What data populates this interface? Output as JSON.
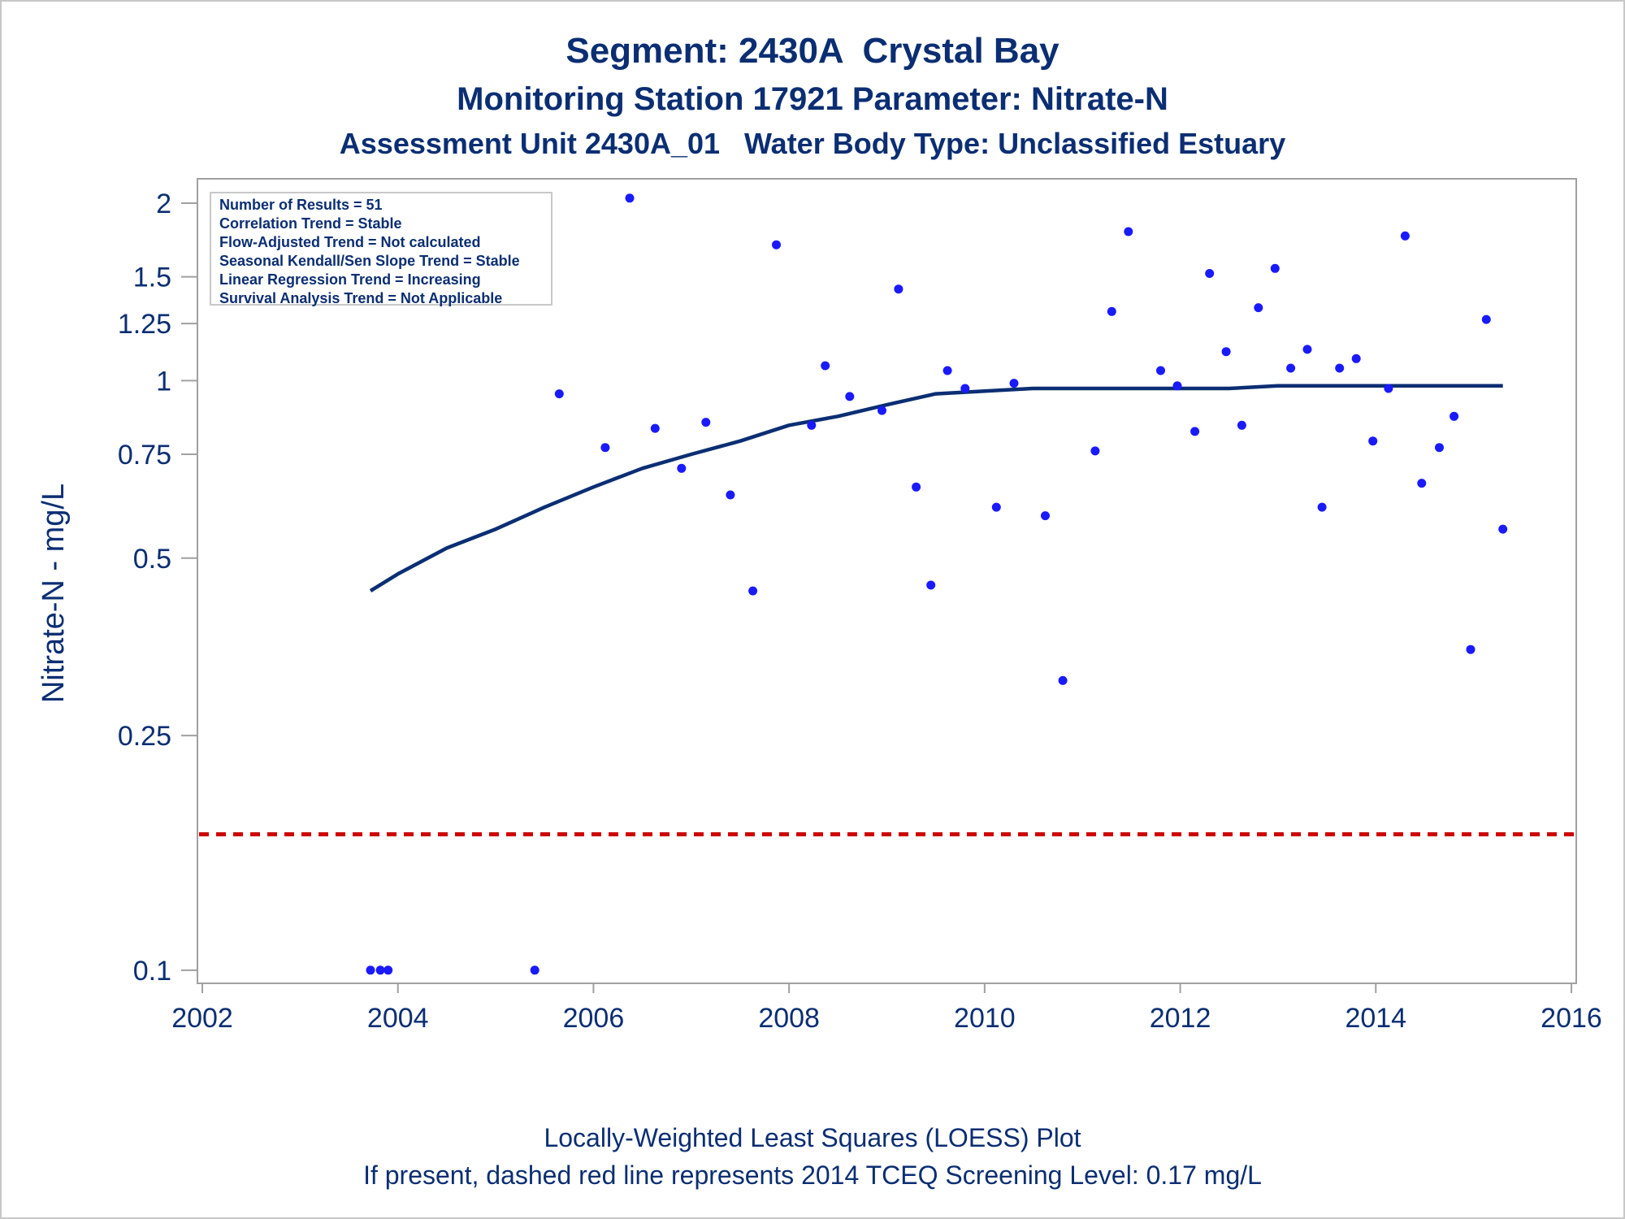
{
  "titles": {
    "line1": "Segment: 2430A  Crystal Bay",
    "line2": "Monitoring Station 17921 Parameter: Nitrate-N",
    "line3": "Assessment Unit 2430A_01   Water Body Type: Unclassified Estuary"
  },
  "footnotes": {
    "line1": "Locally-Weighted Least Squares (LOESS) Plot",
    "line2": "If present, dashed red line represents 2014 TCEQ Screening Level: 0.17 mg/L"
  },
  "stats": [
    "Number of Results = 51",
    "Correlation Trend = Stable",
    "Flow-Adjusted Trend = Not calculated",
    "Seasonal Kendall/Sen Slope Trend = Stable",
    "Linear Regression Trend = Increasing",
    "Survival Analysis Trend = Not Applicable"
  ],
  "colors": {
    "text": "#0b2e73",
    "points": "#1a1aff",
    "loess": "#0b2e73",
    "screening_line": "#cc0000",
    "axis": "#a0a0a0"
  },
  "chart_data": {
    "type": "scatter",
    "xlabel": "",
    "ylabel": "Nitrate-N - mg/L",
    "xlim": [
      2001.95,
      2016.05
    ],
    "ylim": [
      0.095,
      2.2
    ],
    "y_scale": "log",
    "x_ticks": [
      2002,
      2004,
      2006,
      2008,
      2010,
      2012,
      2014,
      2016
    ],
    "x_tick_labels": [
      "2002",
      "2004",
      "2006",
      "2008",
      "2010",
      "2012",
      "2014",
      "2016"
    ],
    "y_ticks": [
      0.1,
      0.25,
      0.5,
      0.75,
      1,
      1.25,
      1.5,
      2
    ],
    "y_tick_labels": [
      "0.1",
      "0.25",
      "0.5",
      "0.75",
      "1",
      "1.25",
      "1.5",
      "2"
    ],
    "grid": false,
    "legend": "none",
    "series": [
      {
        "type": "scatter",
        "points": [
          [
            2003.72,
            0.1
          ],
          [
            2003.82,
            0.1
          ],
          [
            2003.9,
            0.1
          ],
          [
            2005.4,
            0.1
          ],
          [
            2005.65,
            0.95
          ],
          [
            2006.12,
            0.77
          ],
          [
            2006.37,
            2.04
          ],
          [
            2006.63,
            0.83
          ],
          [
            2006.9,
            0.71
          ],
          [
            2007.15,
            0.85
          ],
          [
            2007.4,
            0.64
          ],
          [
            2007.63,
            0.44
          ],
          [
            2007.87,
            1.7
          ],
          [
            2008.23,
            0.84
          ],
          [
            2008.37,
            1.06
          ],
          [
            2008.62,
            0.94
          ],
          [
            2008.95,
            0.89
          ],
          [
            2009.12,
            1.43
          ],
          [
            2009.3,
            0.66
          ],
          [
            2009.45,
            0.45
          ],
          [
            2009.62,
            1.04
          ],
          [
            2009.8,
            0.97
          ],
          [
            2010.12,
            0.61
          ],
          [
            2010.3,
            0.99
          ],
          [
            2010.62,
            0.59
          ],
          [
            2010.8,
            0.31
          ],
          [
            2011.13,
            0.76
          ],
          [
            2011.3,
            1.31
          ],
          [
            2011.47,
            1.79
          ],
          [
            2011.8,
            1.04
          ],
          [
            2011.97,
            0.98
          ],
          [
            2012.15,
            0.82
          ],
          [
            2012.3,
            1.52
          ],
          [
            2012.47,
            1.12
          ],
          [
            2012.63,
            0.84
          ],
          [
            2012.8,
            1.33
          ],
          [
            2012.97,
            1.55
          ],
          [
            2013.13,
            1.05
          ],
          [
            2013.3,
            1.13
          ],
          [
            2013.45,
            0.61
          ],
          [
            2013.63,
            1.05
          ],
          [
            2013.8,
            1.09
          ],
          [
            2013.97,
            0.79
          ],
          [
            2014.13,
            0.97
          ],
          [
            2014.3,
            1.76
          ],
          [
            2014.47,
            0.67
          ],
          [
            2014.65,
            0.77
          ],
          [
            2014.8,
            0.87
          ],
          [
            2014.97,
            0.35
          ],
          [
            2015.13,
            1.27
          ],
          [
            2015.3,
            0.56
          ]
        ]
      },
      {
        "type": "line",
        "points": [
          [
            2003.72,
            0.44
          ],
          [
            2004.0,
            0.47
          ],
          [
            2004.5,
            0.52
          ],
          [
            2005.0,
            0.56
          ],
          [
            2005.5,
            0.61
          ],
          [
            2006.0,
            0.66
          ],
          [
            2006.5,
            0.71
          ],
          [
            2007.0,
            0.75
          ],
          [
            2007.5,
            0.79
          ],
          [
            2008.0,
            0.84
          ],
          [
            2008.5,
            0.87
          ],
          [
            2009.0,
            0.91
          ],
          [
            2009.5,
            0.95
          ],
          [
            2010.0,
            0.96
          ],
          [
            2010.5,
            0.97
          ],
          [
            2011.0,
            0.97
          ],
          [
            2011.5,
            0.97
          ],
          [
            2012.0,
            0.97
          ],
          [
            2012.5,
            0.97
          ],
          [
            2013.0,
            0.98
          ],
          [
            2013.5,
            0.98
          ],
          [
            2014.0,
            0.98
          ],
          [
            2014.5,
            0.98
          ],
          [
            2015.0,
            0.98
          ],
          [
            2015.3,
            0.98
          ]
        ]
      }
    ],
    "reference_lines": [
      {
        "axis": "y",
        "value": 0.17,
        "style": "dashed"
      }
    ]
  }
}
